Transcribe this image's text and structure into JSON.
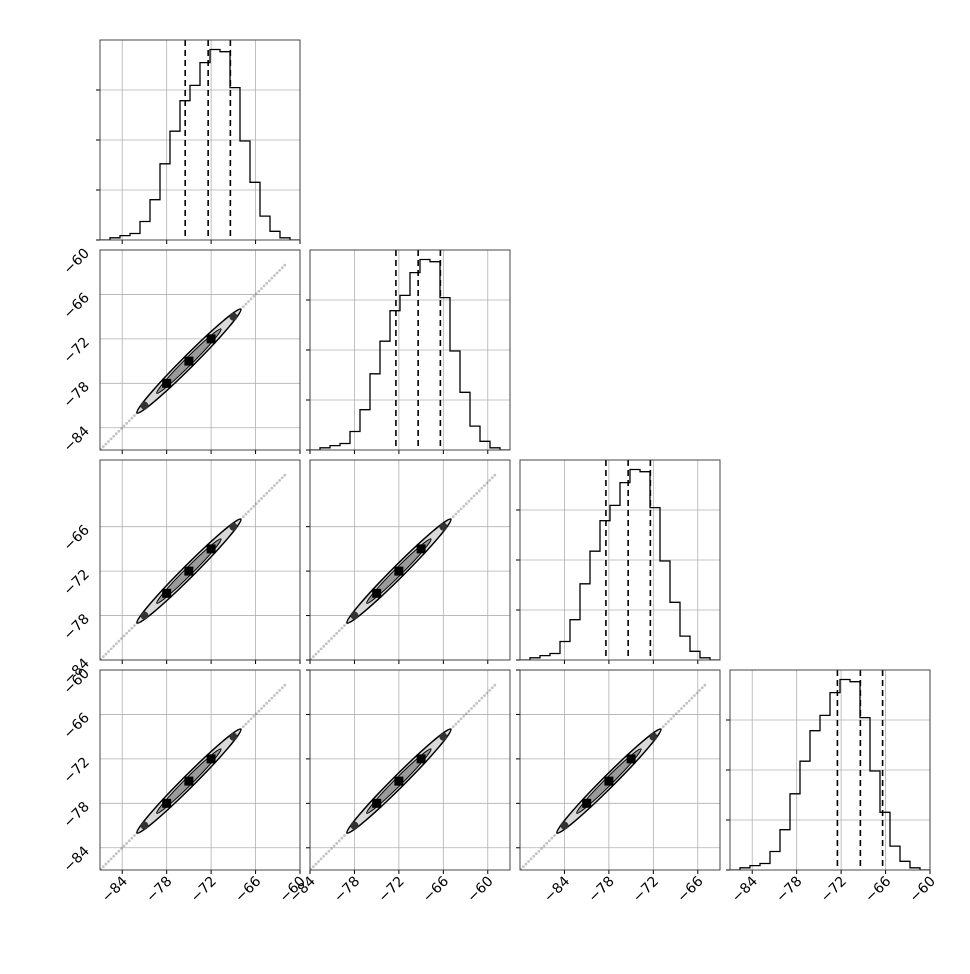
{
  "chart_data": {
    "type": "corner",
    "parameters": 4,
    "axis_ticks": {
      "x_row4": [
        [
          "−84",
          "−78",
          "−72",
          "−66",
          "−60"
        ],
        [
          "−84",
          "−78",
          "−72",
          "−66",
          "−60"
        ],
        [
          "−84",
          "−78",
          "−72",
          "−66"
        ],
        [
          "−84",
          "−78",
          "−72",
          "−66",
          "−60"
        ]
      ],
      "y_col1": [
        [],
        [
          "−60",
          "−66",
          "−72",
          "−78",
          "−84"
        ],
        [
          "−66",
          "−72",
          "−78",
          "−84"
        ],
        [
          "−60",
          "−66",
          "−72",
          "−78",
          "−84"
        ]
      ]
    },
    "x_ranges": [
      [
        -87,
        -60
      ],
      [
        -84,
        -57
      ],
      [
        -90,
        -63
      ],
      [
        -87,
        -60
      ]
    ],
    "y_ranges": [
      [
        -87,
        -60
      ],
      [
        -84,
        -57
      ],
      [
        -87,
        -60
      ]
    ],
    "histograms": [
      {
        "edges_start": -87,
        "bin_width": 1.35,
        "counts": [
          0,
          2,
          4,
          6,
          17,
          37,
          70,
          100,
          128,
          142,
          163,
          175,
          173,
          140,
          91,
          53,
          22,
          8,
          2,
          0
        ],
        "quantiles": [
          -75.5,
          -72.4,
          -69.4
        ]
      },
      {
        "edges_start": -84,
        "bin_width": 1.35,
        "counts": [
          0,
          2,
          4,
          6,
          17,
          37,
          70,
          100,
          128,
          142,
          163,
          175,
          173,
          140,
          91,
          53,
          22,
          8,
          2,
          0
        ],
        "quantiles": [
          -72.4,
          -69.4,
          -66.4
        ]
      },
      {
        "edges_start": -90,
        "bin_width": 1.35,
        "counts": [
          0,
          2,
          4,
          6,
          17,
          37,
          70,
          100,
          128,
          142,
          163,
          175,
          173,
          140,
          91,
          53,
          22,
          8,
          2,
          0
        ],
        "quantiles": [
          -78.4,
          -75.4,
          -72.4
        ]
      },
      {
        "edges_start": -87,
        "bin_width": 1.35,
        "counts": [
          0,
          2,
          4,
          6,
          17,
          37,
          70,
          100,
          128,
          142,
          163,
          175,
          173,
          140,
          91,
          53,
          22,
          8,
          2,
          0
        ],
        "quantiles": [
          -72.5,
          -69.4,
          -66.4
        ]
      }
    ],
    "grid": true,
    "colors": {
      "line": "#000000",
      "grid": "#b0b0b0",
      "contour_fill": "#d9d9d9"
    }
  }
}
